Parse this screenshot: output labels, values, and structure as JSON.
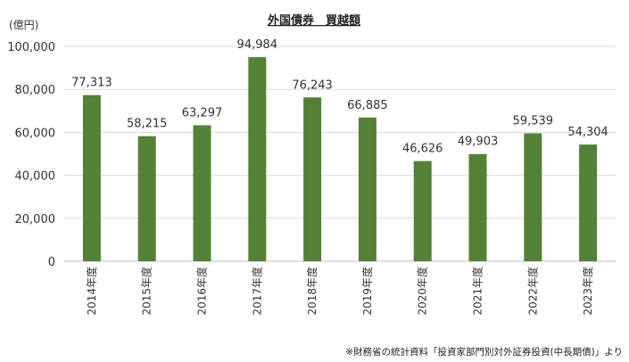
{
  "chart_data": {
    "type": "bar",
    "title": "外国債券　買越額",
    "unit_label": "(億円)",
    "categories": [
      "2014年度",
      "2015年度",
      "2016年度",
      "2017年度",
      "2018年度",
      "2019年度",
      "2020年度",
      "2021年度",
      "2022年度",
      "2023年度"
    ],
    "values": [
      77313,
      58215,
      63297,
      94984,
      76243,
      66885,
      46626,
      49903,
      59539,
      54304
    ],
    "data_labels": [
      "77,313",
      "58,215",
      "63,297",
      "94,984",
      "76,243",
      "66,885",
      "46,626",
      "49,903",
      "59,539",
      "54,304"
    ],
    "y_ticks": [
      "0",
      "20,000",
      "40,000",
      "60,000",
      "80,000",
      "100,000"
    ],
    "ylim": [
      0,
      100000
    ],
    "grid": true,
    "bar_color": "#538135",
    "grid_color": "#d9d9d9",
    "source_note": "※財務省の統計資料「投資家部門別対外証券投資(中長期債)」より"
  }
}
